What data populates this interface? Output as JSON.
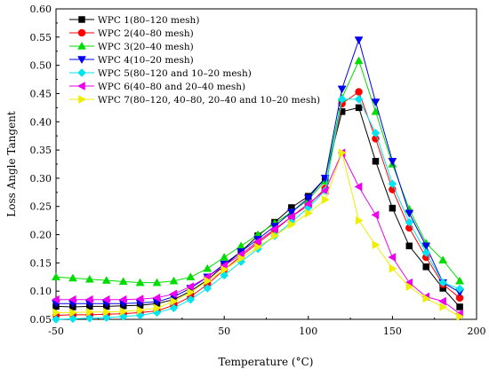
{
  "chart_data": {
    "type": "line",
    "title": "",
    "xlabel": "Temperature (°C)",
    "ylabel": "Loss Angle Tangent",
    "xlim": [
      -50,
      200
    ],
    "ylim": [
      0.05,
      0.6
    ],
    "xticks": [
      -50,
      0,
      50,
      100,
      150,
      200
    ],
    "yticks": [
      0.05,
      0.1,
      0.15,
      0.2,
      0.25,
      0.3,
      0.35,
      0.4,
      0.45,
      0.5,
      0.55,
      0.6
    ],
    "x_tick_labels": [
      "-50",
      "0",
      "50",
      "100",
      "150",
      "200"
    ],
    "y_tick_labels": [
      "0.05",
      "0.10",
      "0.15",
      "0.20",
      "0.25",
      "0.30",
      "0.35",
      "0.40",
      "0.45",
      "0.50",
      "0.55",
      "0.60"
    ],
    "legend_position": "top-left",
    "grid": false,
    "x": [
      -50,
      -40,
      -30,
      -20,
      -10,
      0,
      10,
      20,
      30,
      40,
      50,
      60,
      70,
      80,
      90,
      100,
      110,
      120,
      130,
      140,
      150,
      160,
      170,
      180,
      190
    ],
    "series": [
      {
        "name": "WPC 1(80–120 mesh)",
        "color": "#000000",
        "marker": "square",
        "values": [
          0.073,
          0.072,
          0.073,
          0.073,
          0.074,
          0.075,
          0.078,
          0.085,
          0.1,
          0.12,
          0.145,
          0.17,
          0.198,
          0.222,
          0.248,
          0.268,
          0.3,
          0.418,
          0.425,
          0.33,
          0.247,
          0.18,
          0.143,
          0.105,
          0.072
        ]
      },
      {
        "name": "WPC 2(40–80 mesh)",
        "color": "#ff0000",
        "marker": "circle",
        "values": [
          0.057,
          0.058,
          0.058,
          0.059,
          0.06,
          0.062,
          0.065,
          0.075,
          0.09,
          0.112,
          0.138,
          0.162,
          0.185,
          0.208,
          0.232,
          0.252,
          0.282,
          0.432,
          0.453,
          0.37,
          0.28,
          0.212,
          0.16,
          0.112,
          0.088
        ]
      },
      {
        "name": "WPC 3(20–40 mesh)",
        "color": "#00dd00",
        "marker": "triangle-up",
        "values": [
          0.125,
          0.123,
          0.121,
          0.119,
          0.117,
          0.115,
          0.115,
          0.118,
          0.125,
          0.14,
          0.16,
          0.18,
          0.2,
          0.22,
          0.24,
          0.262,
          0.295,
          0.442,
          0.508,
          0.418,
          0.325,
          0.245,
          0.185,
          0.155,
          0.118
        ]
      },
      {
        "name": "WPC 4(10–20 mesh)",
        "color": "#0000ee",
        "marker": "triangle-down",
        "values": [
          0.078,
          0.078,
          0.078,
          0.078,
          0.078,
          0.079,
          0.081,
          0.09,
          0.105,
          0.125,
          0.148,
          0.17,
          0.192,
          0.215,
          0.24,
          0.265,
          0.3,
          0.458,
          0.545,
          0.435,
          0.33,
          0.238,
          0.18,
          0.115,
          0.098
        ]
      },
      {
        "name": "WPC 5(80–120 and 10–20 mesh)",
        "color": "#00e5ee",
        "marker": "diamond",
        "values": [
          0.05,
          0.051,
          0.052,
          0.053,
          0.055,
          0.057,
          0.062,
          0.07,
          0.085,
          0.105,
          0.128,
          0.152,
          0.175,
          0.198,
          0.222,
          0.248,
          0.278,
          0.44,
          0.44,
          0.38,
          0.29,
          0.222,
          0.168,
          0.115,
          0.104
        ]
      },
      {
        "name": "WPC 6(40–80 and 20–40 mesh)",
        "color": "#ee00ee",
        "marker": "triangle-left",
        "values": [
          0.085,
          0.085,
          0.085,
          0.085,
          0.085,
          0.086,
          0.088,
          0.095,
          0.108,
          0.125,
          0.145,
          0.165,
          0.188,
          0.21,
          0.232,
          0.255,
          0.278,
          0.345,
          0.285,
          0.235,
          0.16,
          0.115,
          0.09,
          0.082,
          0.06
        ]
      },
      {
        "name": "WPC 7(80–120, 40–80, 20–40 and 10–20 mesh)",
        "color": "#eeee00",
        "marker": "triangle-right",
        "values": [
          0.062,
          0.062,
          0.063,
          0.063,
          0.064,
          0.066,
          0.07,
          0.082,
          0.098,
          0.118,
          0.138,
          0.158,
          0.178,
          0.198,
          0.218,
          0.238,
          0.262,
          0.345,
          0.225,
          0.182,
          0.14,
          0.108,
          0.087,
          0.072,
          0.055
        ]
      }
    ]
  }
}
